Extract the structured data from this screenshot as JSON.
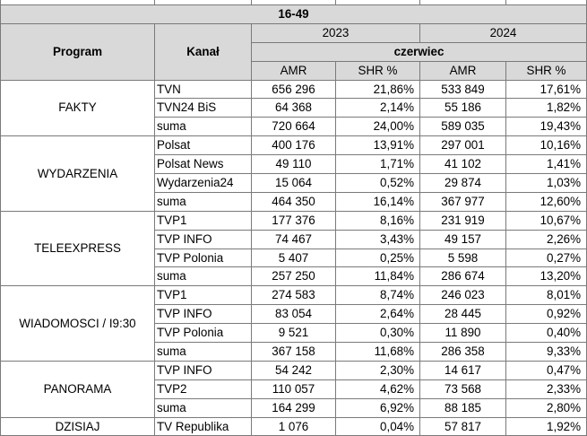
{
  "header": {
    "group": "16-49",
    "program_label": "Program",
    "channel_label": "Kanał",
    "year_2023": "2023",
    "year_2024": "2024",
    "month": "czerwiec",
    "amr_label": "AMR",
    "shr_label": "SHR %"
  },
  "programs": [
    {
      "name": "FAKTY",
      "rows": [
        {
          "channel": "TVN",
          "amr_2023": "656 296",
          "shr_2023": "21,86%",
          "amr_2024": "533 849",
          "shr_2024": "17,61%"
        },
        {
          "channel": "TVN24 BiS",
          "amr_2023": "64 368",
          "shr_2023": "2,14%",
          "amr_2024": "55 186",
          "shr_2024": "1,82%"
        },
        {
          "channel": "suma",
          "amr_2023": "720 664",
          "shr_2023": "24,00%",
          "amr_2024": "589 035",
          "shr_2024": "19,43%",
          "is_sum": true
        }
      ]
    },
    {
      "name": "WYDARZENIA",
      "rows": [
        {
          "channel": "Polsat",
          "amr_2023": "400 176",
          "shr_2023": "13,91%",
          "amr_2024": "297 001",
          "shr_2024": "10,16%"
        },
        {
          "channel": "Polsat News",
          "amr_2023": "49 110",
          "shr_2023": "1,71%",
          "amr_2024": "41 102",
          "shr_2024": "1,41%"
        },
        {
          "channel": "Wydarzenia24",
          "amr_2023": "15 064",
          "shr_2023": "0,52%",
          "amr_2024": "29 874",
          "shr_2024": "1,03%"
        },
        {
          "channel": "suma",
          "amr_2023": "464 350",
          "shr_2023": "16,14%",
          "amr_2024": "367 977",
          "shr_2024": "12,60%",
          "is_sum": true
        }
      ]
    },
    {
      "name": "TELEEXPRESS",
      "rows": [
        {
          "channel": "TVP1",
          "amr_2023": "177 376",
          "shr_2023": "8,16%",
          "amr_2024": "231 919",
          "shr_2024": "10,67%"
        },
        {
          "channel": "TVP INFO",
          "amr_2023": "74 467",
          "shr_2023": "3,43%",
          "amr_2024": "49 157",
          "shr_2024": "2,26%"
        },
        {
          "channel": "TVP Polonia",
          "amr_2023": "5 407",
          "shr_2023": "0,25%",
          "amr_2024": "5 598",
          "shr_2024": "0,27%"
        },
        {
          "channel": "suma",
          "amr_2023": "257 250",
          "shr_2023": "11,84%",
          "amr_2024": "286 674",
          "shr_2024": "13,20%",
          "is_sum": true
        }
      ]
    },
    {
      "name": "WIADOMOSCI / I9:30",
      "rows": [
        {
          "channel": "TVP1",
          "amr_2023": "274 583",
          "shr_2023": "8,74%",
          "amr_2024": "246 023",
          "shr_2024": "8,01%"
        },
        {
          "channel": "TVP INFO",
          "amr_2023": "83 054",
          "shr_2023": "2,64%",
          "amr_2024": "28 445",
          "shr_2024": "0,92%"
        },
        {
          "channel": "TVP Polonia",
          "amr_2023": "9 521",
          "shr_2023": "0,30%",
          "amr_2024": "11 890",
          "shr_2024": "0,40%"
        },
        {
          "channel": "suma",
          "amr_2023": "367 158",
          "shr_2023": "11,68%",
          "amr_2024": "286 358",
          "shr_2024": "9,33%",
          "is_sum": true
        }
      ]
    },
    {
      "name": "PANORAMA",
      "rows": [
        {
          "channel": "TVP INFO",
          "amr_2023": "54 242",
          "shr_2023": "2,30%",
          "amr_2024": "14 617",
          "shr_2024": "0,47%"
        },
        {
          "channel": "TVP2",
          "amr_2023": "110 057",
          "shr_2023": "4,62%",
          "amr_2024": "73 568",
          "shr_2024": "2,33%"
        },
        {
          "channel": "suma",
          "amr_2023": "164 299",
          "shr_2023": "6,92%",
          "amr_2024": "88 185",
          "shr_2024": "2,80%",
          "is_sum": true
        }
      ]
    },
    {
      "name": "DZISIAJ",
      "rows": [
        {
          "channel": "TV Republika",
          "amr_2023": "1 076",
          "shr_2023": "0,04%",
          "amr_2024": "57 817",
          "shr_2024": "1,92%"
        }
      ]
    }
  ]
}
